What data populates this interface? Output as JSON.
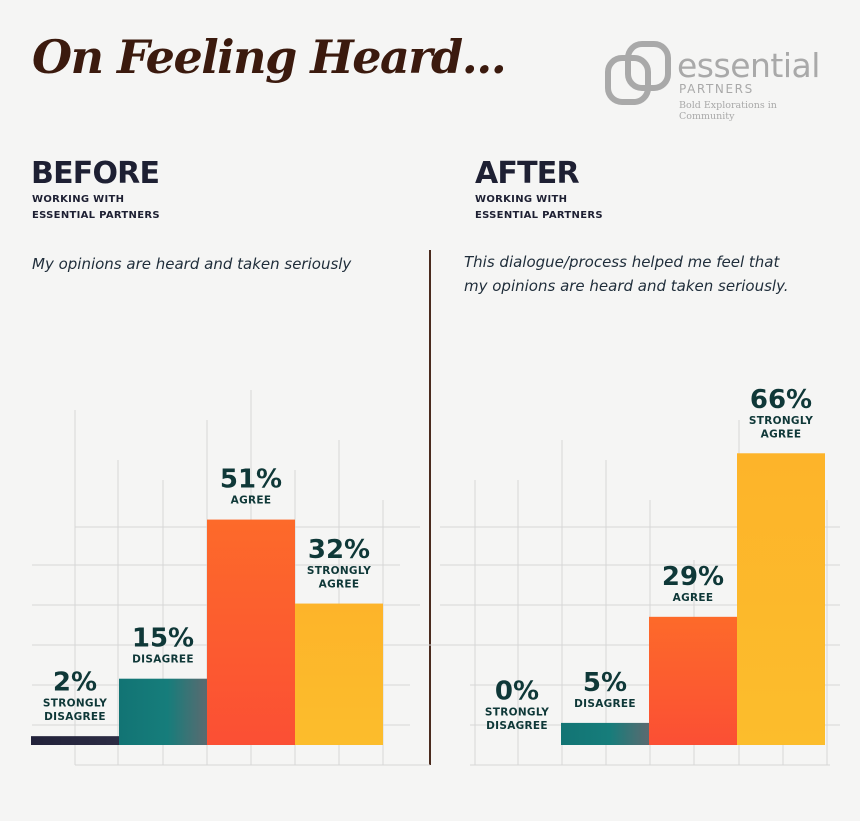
{
  "title": "On Feeling Heard...",
  "logo": {
    "name": "essential",
    "sub": "PARTNERS",
    "tagline": "Bold Explorations in Community",
    "color": "#a9a9a9"
  },
  "before": {
    "heading": "BEFORE",
    "subheading": "WORKING WITH\nESSENTIAL PARTNERS",
    "question": "My opinions are heard and taken seriously"
  },
  "after": {
    "heading": "AFTER",
    "subheading": "WORKING WITH\nESSENTIAL PARTNERS",
    "question": "This dialogue/process helped me feel that\nmy opinions are heard and taken seriously."
  },
  "chart_data": [
    {
      "type": "bar",
      "categories": [
        "STRONGLY DISAGREE",
        "DISAGREE",
        "AGREE",
        "STRONGLY AGREE"
      ],
      "values": [
        2,
        15,
        51,
        32
      ],
      "labels": [
        "2%",
        "15%",
        "51%",
        "32%"
      ],
      "colors": [
        "#26263d",
        "#157a7a",
        "#fb5a2c",
        "#fcb82a"
      ],
      "title": "",
      "xlabel": "",
      "ylabel": "",
      "ylim": [
        0,
        100
      ]
    },
    {
      "type": "bar",
      "categories": [
        "STRONGLY DISAGREE",
        "DISAGREE",
        "AGREE",
        "STRONGLY AGREE"
      ],
      "values": [
        0,
        5,
        29,
        66
      ],
      "labels": [
        "0%",
        "5%",
        "29%",
        "66%"
      ],
      "colors": [
        "#26263d",
        "#157a7a",
        "#fb5a2c",
        "#fcb82a"
      ],
      "title": "",
      "xlabel": "",
      "ylabel": "",
      "ylim": [
        0,
        100
      ]
    }
  ]
}
